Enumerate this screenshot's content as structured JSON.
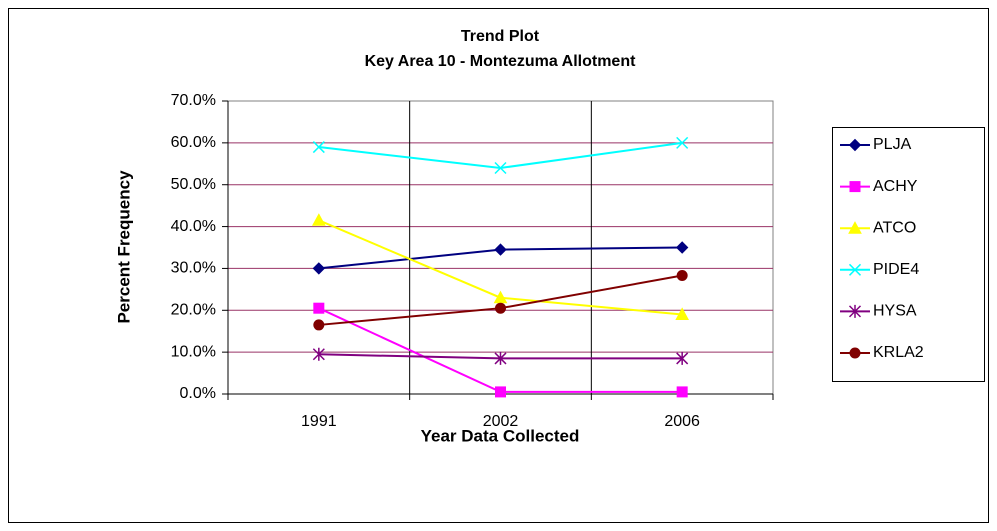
{
  "chart_data": {
    "type": "line",
    "title": "Trend Plot",
    "subtitle": "Key Area 10 - Montezuma Allotment",
    "x_label": "Year Data Collected",
    "y_label": "Percent Frequency",
    "categories": [
      "1991",
      "2002",
      "2006"
    ],
    "series": [
      {
        "name": "PLJA",
        "color": "#000080",
        "marker": "diamond",
        "values": [
          30,
          34.5,
          35
        ]
      },
      {
        "name": "ACHY",
        "color": "#ff00ff",
        "marker": "square",
        "values": [
          20.5,
          0.5,
          0.5
        ]
      },
      {
        "name": "ATCO",
        "color": "#ffff00",
        "marker": "triangle",
        "values": [
          41.5,
          23,
          19
        ]
      },
      {
        "name": "PIDE4",
        "color": "#00ffff",
        "marker": "x",
        "values": [
          59,
          54,
          60
        ]
      },
      {
        "name": "HYSA",
        "color": "#800080",
        "marker": "star",
        "values": [
          9.5,
          8.5,
          8.5
        ]
      },
      {
        "name": "KRLA2",
        "color": "#800000",
        "marker": "circle",
        "values": [
          16.5,
          20.5,
          28.3
        ]
      }
    ],
    "ylim": [
      0,
      70
    ],
    "yticks": [
      {
        "value": 0,
        "label": "0.0%"
      },
      {
        "value": 10,
        "label": "10.0%"
      },
      {
        "value": 20,
        "label": "20.0%"
      },
      {
        "value": 30,
        "label": "30.0%"
      },
      {
        "value": 40,
        "label": "40.0%"
      },
      {
        "value": 50,
        "label": "50.0%"
      },
      {
        "value": 60,
        "label": "60.0%"
      },
      {
        "value": 70,
        "label": "70.0%"
      }
    ],
    "grid": true,
    "grid_color": "#993366",
    "legend": "right"
  }
}
